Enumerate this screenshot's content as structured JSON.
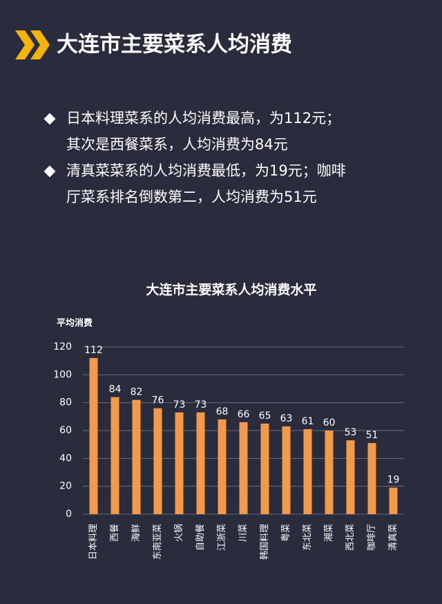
{
  "header": {
    "title": "大连市主要菜系人均消费"
  },
  "bullets": [
    {
      "lines": [
        "日本料理菜系的人均消费最高，为112元；",
        "其次是西餐菜系，人均消费为84元"
      ]
    },
    {
      "lines": [
        "清真菜菜系的人均消费最低，为19元；咖啡",
        "厅菜系排名倒数第二，人均消费为51元"
      ]
    }
  ],
  "chart_data": {
    "type": "bar",
    "title": "大连市主要菜系人均消费水平",
    "y_label": "平均消费",
    "categories": [
      "日本料理",
      "西餐",
      "海鲜",
      "东南亚菜",
      "火锅",
      "自助餐",
      "江浙菜",
      "川菜",
      "韩国料理",
      "粤菜",
      "东北菜",
      "湘菜",
      "西北菜",
      "咖啡厅",
      "清真菜"
    ],
    "values": [
      112,
      84,
      82,
      76,
      73,
      73,
      68,
      66,
      65,
      63,
      61,
      60,
      53,
      51,
      19
    ],
    "color": "#f29a48",
    "ylim": [
      0,
      120
    ],
    "yticks": [
      0,
      20,
      40,
      60,
      80,
      100,
      120
    ],
    "grid": true
  }
}
